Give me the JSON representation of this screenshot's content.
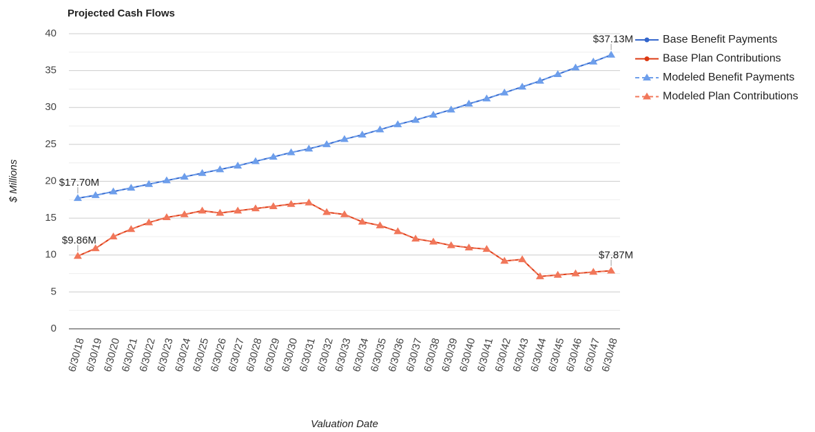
{
  "chart_data": {
    "type": "line",
    "title": "Projected Cash Flows",
    "x_label": "Valuation Date",
    "y_label": "$ Millions",
    "categories": [
      "6/30/18",
      "6/30/19",
      "6/30/20",
      "6/30/21",
      "6/30/22",
      "6/30/23",
      "6/30/24",
      "6/30/25",
      "6/30/26",
      "6/30/27",
      "6/30/28",
      "6/30/29",
      "6/30/30",
      "6/30/31",
      "6/30/32",
      "6/30/33",
      "6/30/34",
      "6/30/35",
      "6/30/36",
      "6/30/37",
      "6/30/38",
      "6/30/39",
      "6/30/40",
      "6/30/41",
      "6/30/42",
      "6/30/43",
      "6/30/44",
      "6/30/45",
      "6/30/46",
      "6/30/47",
      "6/30/48"
    ],
    "series": [
      {
        "name": "Base Benefit Payments",
        "color": "#3366cc",
        "style": "solid",
        "marker": "circle",
        "values": [
          17.7,
          18.1,
          18.6,
          19.1,
          19.6,
          20.1,
          20.6,
          21.1,
          21.6,
          22.1,
          22.7,
          23.3,
          23.9,
          24.4,
          25.0,
          25.7,
          26.3,
          27.0,
          27.7,
          28.3,
          29.0,
          29.7,
          30.5,
          31.2,
          32.0,
          32.8,
          33.6,
          34.5,
          35.4,
          36.2,
          37.13
        ]
      },
      {
        "name": "Base Plan Contributions",
        "color": "#dc3912",
        "style": "solid",
        "marker": "circle",
        "values": [
          9.86,
          10.9,
          12.5,
          13.5,
          14.4,
          15.1,
          15.5,
          16.0,
          15.7,
          16.0,
          16.3,
          16.6,
          16.9,
          17.1,
          15.8,
          15.5,
          14.5,
          14.0,
          13.2,
          12.2,
          11.8,
          11.3,
          11.0,
          10.8,
          9.2,
          9.4,
          7.1,
          7.3,
          7.5,
          7.7,
          7.87
        ]
      },
      {
        "name": "Modeled Benefit Payments",
        "color": "#6d9eeb",
        "style": "dashed",
        "marker": "triangle",
        "values": [
          17.7,
          18.1,
          18.6,
          19.1,
          19.6,
          20.1,
          20.6,
          21.1,
          21.6,
          22.1,
          22.7,
          23.3,
          23.9,
          24.4,
          25.0,
          25.7,
          26.3,
          27.0,
          27.7,
          28.3,
          29.0,
          29.7,
          30.5,
          31.2,
          32.0,
          32.8,
          33.6,
          34.5,
          35.4,
          36.2,
          37.13
        ],
        "value_labels": [
          "$17.70M",
          null,
          null,
          null,
          null,
          null,
          null,
          null,
          null,
          null,
          null,
          null,
          null,
          null,
          null,
          null,
          null,
          null,
          null,
          null,
          null,
          null,
          null,
          null,
          null,
          null,
          null,
          null,
          null,
          null,
          "$37.13M"
        ]
      },
      {
        "name": "Modeled Plan Contributions",
        "color": "#f1775a",
        "style": "dashed",
        "marker": "triangle",
        "values": [
          9.86,
          10.9,
          12.5,
          13.5,
          14.4,
          15.1,
          15.5,
          16.0,
          15.7,
          16.0,
          16.3,
          16.6,
          16.9,
          17.1,
          15.8,
          15.5,
          14.5,
          14.0,
          13.2,
          12.2,
          11.8,
          11.3,
          11.0,
          10.8,
          9.2,
          9.4,
          7.1,
          7.3,
          7.5,
          7.7,
          7.87
        ],
        "value_labels": [
          "$9.86M",
          null,
          null,
          null,
          null,
          null,
          null,
          null,
          null,
          null,
          null,
          null,
          null,
          null,
          null,
          null,
          null,
          null,
          null,
          null,
          null,
          null,
          null,
          null,
          null,
          null,
          null,
          null,
          null,
          null,
          "$7.87M"
        ]
      }
    ],
    "ylim": [
      0,
      40
    ],
    "yticks": [
      0,
      5,
      10,
      15,
      20,
      25,
      30,
      35,
      40
    ],
    "grid": true,
    "legend": "right"
  }
}
